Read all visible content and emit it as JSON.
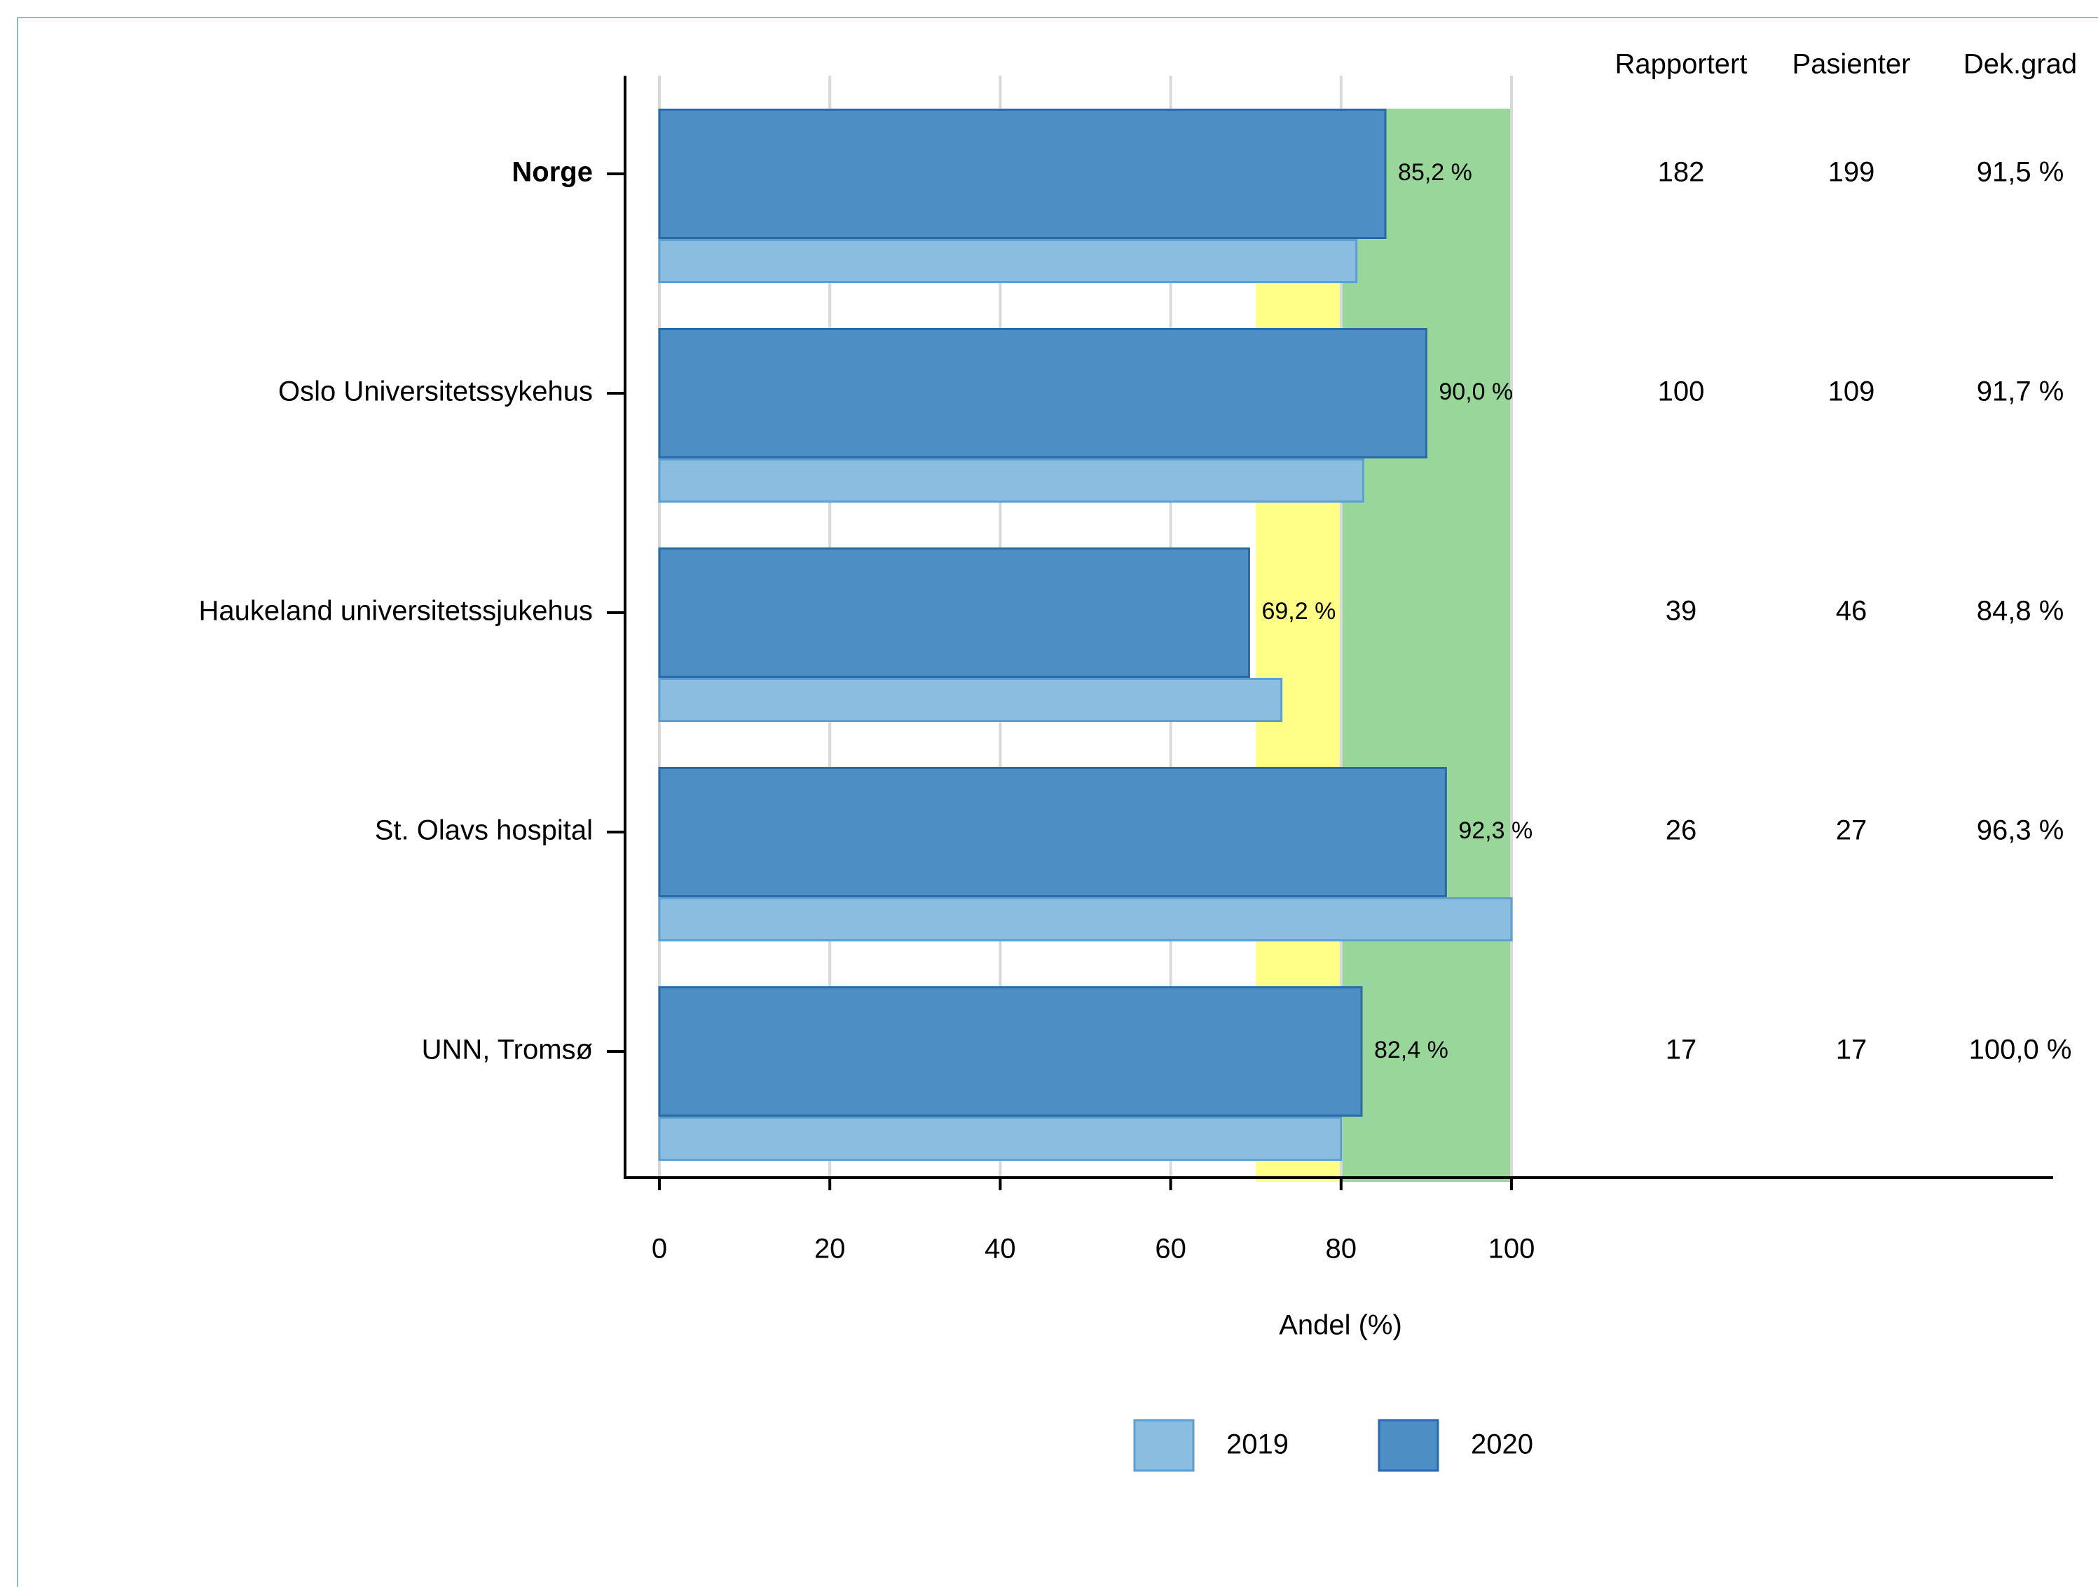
{
  "chart_data": {
    "type": "bar",
    "orientation": "horizontal",
    "categories": [
      "Norge",
      "Oslo Universitetssykehus",
      "Haukeland universitetssjukehus",
      "St. Olavs hospital",
      "UNN, Tromsø"
    ],
    "bold_categories": [
      "Norge"
    ],
    "series": [
      {
        "name": "2020",
        "values": [
          85.2,
          90.0,
          69.2,
          92.3,
          82.4
        ],
        "color": "#4d8ec4",
        "stroke": "#2b6aa8"
      },
      {
        "name": "2019",
        "values": [
          81.8,
          82.6,
          73.0,
          100.0,
          80.0
        ],
        "color": "#8bbde0",
        "stroke": "#5d9fd1"
      }
    ],
    "value_labels": [
      "85,2 %",
      "90,0 %",
      "69,2 %",
      "92,3 %",
      "82,4 %"
    ],
    "target_bands": [
      {
        "from": 70,
        "to": 80,
        "color": "#ffff88"
      },
      {
        "from": 80,
        "to": 100,
        "color": "#99d699"
      }
    ],
    "xlim": [
      0,
      100
    ],
    "xticks": [
      0,
      20,
      40,
      60,
      80,
      100
    ],
    "xlabel": "Andel (%)",
    "grid": true,
    "legend_position": "bottom",
    "table": {
      "headers": [
        "Rapportert",
        "Pasienter",
        "Dek.grad"
      ],
      "rows": [
        [
          "182",
          "199",
          "91,5 %"
        ],
        [
          "100",
          "109",
          "91,7 %"
        ],
        [
          "39",
          "46",
          "84,8 %"
        ],
        [
          "26",
          "27",
          "96,3 %"
        ],
        [
          "17",
          "17",
          "100,0 %"
        ]
      ]
    },
    "legend": [
      {
        "label": "2019",
        "color": "#8bbde0",
        "stroke": "#5d9fd1"
      },
      {
        "label": "2020",
        "color": "#4d8ec4",
        "stroke": "#2b6aa8"
      }
    ]
  }
}
